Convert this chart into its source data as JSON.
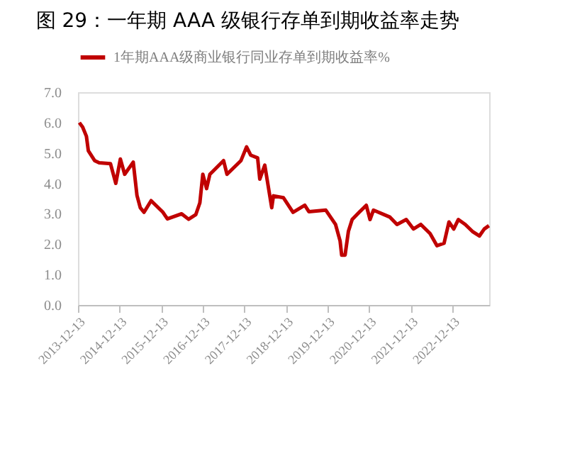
{
  "chart_data": {
    "type": "line",
    "title": "图 29：一年期 AAA 级银行存单到期收益率走势",
    "legend": "top",
    "xlim": [
      "2013-12-13",
      "2023-11-01"
    ],
    "xticks": [
      "2013-12-13",
      "2014-12-13",
      "2015-12-13",
      "2016-12-13",
      "2017-12-13",
      "2018-12-13",
      "2019-12-13",
      "2020-12-13",
      "2021-12-13",
      "2022-12-13"
    ],
    "ylim": [
      0,
      7
    ],
    "yticks": [
      {
        "value": 0,
        "label": "0.0"
      },
      {
        "value": 1,
        "label": "1.0"
      },
      {
        "value": 2,
        "label": "2.0"
      },
      {
        "value": 3,
        "label": "3.0"
      },
      {
        "value": 4,
        "label": "4.0"
      },
      {
        "value": 5,
        "label": "5.0"
      },
      {
        "value": 6,
        "label": "6.0"
      },
      {
        "value": 7,
        "label": "7.0"
      }
    ],
    "series": [
      {
        "name": "1年期AAA级商业银行同业存单到期收益率%",
        "color": "#c00000",
        "x": [
          "2013-12-25",
          "2014-01-23",
          "2014-02-25",
          "2014-03-14",
          "2014-05-08",
          "2014-06-17",
          "2014-09-24",
          "2014-11-10",
          "2014-12-20",
          "2015-01-27",
          "2015-04-12",
          "2015-05-15",
          "2015-06-13",
          "2015-07-16",
          "2015-09-16",
          "2015-12-29",
          "2016-02-06",
          "2016-06-10",
          "2016-08-10",
          "2016-10-12",
          "2016-11-17",
          "2016-12-13",
          "2017-01-15",
          "2017-02-13",
          "2017-06-13",
          "2017-07-13",
          "2017-11-13",
          "2018-01-01",
          "2018-02-06",
          "2018-04-08",
          "2018-04-27",
          "2018-06-10",
          "2018-08-10",
          "2018-08-25",
          "2018-11-20",
          "2019-02-13",
          "2019-05-27",
          "2019-07-02",
          "2019-11-28",
          "2020-02-21",
          "2020-04-01",
          "2020-04-15",
          "2020-05-15",
          "2020-06-13",
          "2020-07-16",
          "2020-09-16",
          "2020-11-17",
          "2020-12-20",
          "2021-01-19",
          "2021-06-13",
          "2021-08-14",
          "2021-11-03",
          "2022-01-05",
          "2022-03-11",
          "2022-05-31",
          "2022-07-31",
          "2022-10-01",
          "2022-11-13",
          "2022-12-25",
          "2023-02-03",
          "2023-04-05",
          "2023-06-07",
          "2023-08-07",
          "2023-09-19",
          "2023-10-30"
        ],
        "values": [
          6.0,
          5.85,
          5.55,
          5.07,
          4.75,
          4.68,
          4.65,
          4.0,
          4.8,
          4.3,
          4.7,
          3.6,
          3.2,
          3.05,
          3.43,
          3.05,
          2.83,
          3.0,
          2.82,
          2.97,
          3.36,
          4.3,
          3.83,
          4.3,
          4.75,
          4.3,
          4.75,
          5.2,
          4.93,
          4.84,
          4.14,
          4.6,
          3.2,
          3.59,
          3.53,
          3.05,
          3.28,
          3.07,
          3.12,
          2.65,
          2.11,
          1.64,
          1.64,
          2.42,
          2.81,
          3.05,
          3.28,
          2.81,
          3.12,
          2.89,
          2.65,
          2.81,
          2.5,
          2.65,
          2.35,
          1.95,
          2.03,
          2.73,
          2.5,
          2.81,
          2.65,
          2.42,
          2.27,
          2.5,
          2.61
        ]
      }
    ]
  }
}
